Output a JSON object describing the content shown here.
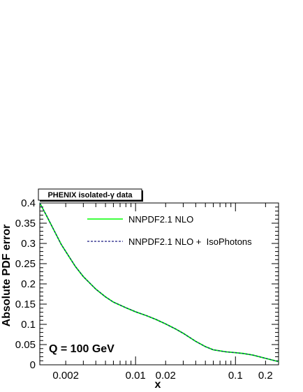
{
  "chart_data": {
    "type": "line",
    "title": "PHENIX isolated-γ data",
    "xlabel": "x",
    "ylabel": "Absolute PDF error",
    "xscale": "log",
    "xlim": [
      0.0011,
      0.27
    ],
    "ylim": [
      0,
      0.4
    ],
    "grid": false,
    "legend_position": "top-center",
    "x_ticks": [
      {
        "value": 0.002,
        "label": "0.002"
      },
      {
        "value": 0.01,
        "label": "0.01"
      },
      {
        "value": 0.02,
        "label": "0.02"
      },
      {
        "value": 0.1,
        "label": "0.1"
      },
      {
        "value": 0.2,
        "label": "0.2"
      }
    ],
    "y_ticks": [
      {
        "value": 0,
        "label": "0"
      },
      {
        "value": 0.05,
        "label": "0.05"
      },
      {
        "value": 0.1,
        "label": "0.1"
      },
      {
        "value": 0.15,
        "label": "0.15"
      },
      {
        "value": 0.2,
        "label": "0.2"
      },
      {
        "value": 0.25,
        "label": "0.25"
      },
      {
        "value": 0.3,
        "label": "0.3"
      },
      {
        "value": 0.35,
        "label": "0.35"
      },
      {
        "value": 0.4,
        "label": "0.4"
      }
    ],
    "annotation": "Q = 100 GeV",
    "x": [
      0.0011,
      0.0013,
      0.0015,
      0.0018,
      0.002,
      0.0025,
      0.003,
      0.004,
      0.005,
      0.006,
      0.008,
      0.01,
      0.013,
      0.016,
      0.02,
      0.025,
      0.03,
      0.04,
      0.05,
      0.06,
      0.08,
      0.1,
      0.12,
      0.15,
      0.2,
      0.25,
      0.27
    ],
    "series": [
      {
        "name": "NNPDF2.1 NLO",
        "color": "#00ff00",
        "style": "solid",
        "values": [
          0.4,
          0.366,
          0.336,
          0.298,
          0.28,
          0.243,
          0.218,
          0.187,
          0.168,
          0.155,
          0.141,
          0.131,
          0.121,
          0.112,
          0.101,
          0.089,
          0.078,
          0.058,
          0.045,
          0.037,
          0.032,
          0.03,
          0.028,
          0.024,
          0.016,
          0.01,
          0.008
        ]
      },
      {
        "name": "NNPDF2.1 NLO +  IsoPhotons",
        "color": "#1a1a80",
        "style": "dashed",
        "values": [
          0.4,
          0.366,
          0.336,
          0.298,
          0.28,
          0.243,
          0.218,
          0.187,
          0.168,
          0.155,
          0.141,
          0.131,
          0.121,
          0.112,
          0.101,
          0.089,
          0.078,
          0.058,
          0.045,
          0.037,
          0.032,
          0.03,
          0.028,
          0.024,
          0.016,
          0.01,
          0.008
        ]
      }
    ]
  }
}
